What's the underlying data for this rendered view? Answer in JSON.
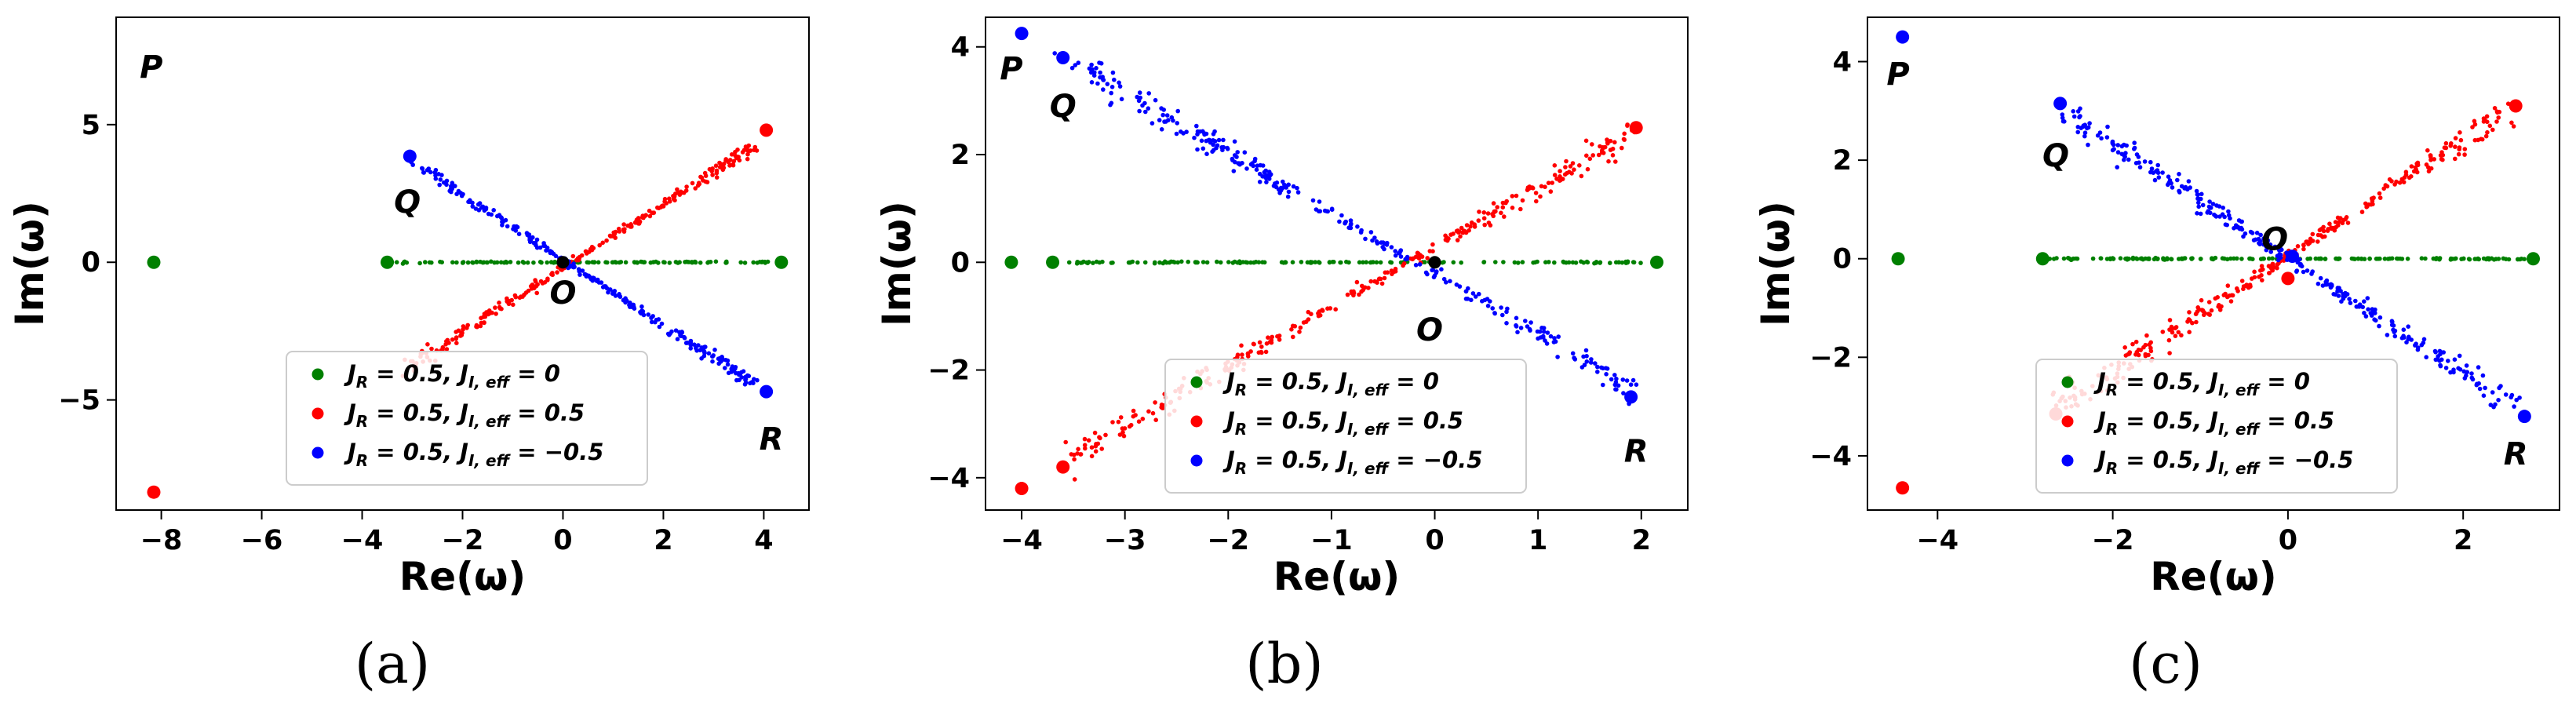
{
  "chart_data": [
    {
      "type": "scatter",
      "panel_label": "(a)",
      "xlabel": "Re(ω)",
      "ylabel": "Im(ω)",
      "xlim": [
        -8.9,
        4.9
      ],
      "ylim": [
        -9.0,
        8.9
      ],
      "xticks": [
        -8,
        -6,
        -4,
        -2,
        0,
        2,
        4
      ],
      "xtick_labels": [
        "−8",
        "−6",
        "−4",
        "−2",
        "0",
        "2",
        "4"
      ],
      "yticks": [
        -5,
        0,
        5
      ],
      "ytick_labels": [
        "−5",
        "0",
        "5"
      ],
      "legend_position": "lower-right",
      "series": [
        {
          "name": "J_R = 0.5, J_I,eff = 0",
          "legend_parts": [
            "J",
            "R",
            " = 0.5, J",
            "I, eff",
            " = 0"
          ],
          "color": "#008000",
          "big_points": [
            [
              -8.15,
              0
            ],
            [
              -3.5,
              0
            ],
            [
              4.35,
              0
            ]
          ],
          "cloud": [
            {
              "kind": "line",
              "x0": -3.5,
              "y0": 0,
              "x1": 4.1,
              "y1": 0,
              "n": 120,
              "spread": 0.02
            }
          ]
        },
        {
          "name": "J_R = 0.5, J_I,eff = 0.5",
          "legend_parts": [
            "J",
            "R",
            " = 0.5, J",
            "I, eff",
            " = 0.5"
          ],
          "color": "#ff0000",
          "big_points": [
            [
              -8.15,
              -8.35
            ],
            [
              4.05,
              4.8
            ]
          ],
          "cloud": [
            {
              "kind": "line",
              "x0": -3.1,
              "y0": -3.8,
              "x1": 3.9,
              "y1": 4.3,
              "n": 260,
              "spread": 0.12
            }
          ]
        },
        {
          "name": "J_R = 0.5, J_I,eff = −0.5",
          "legend_parts": [
            "J",
            "R",
            " = 0.5, J",
            "I, eff",
            " = −0.5"
          ],
          "color": "#0000ff",
          "big_points": [
            [
              -3.05,
              3.85
            ],
            [
              4.05,
              -4.7
            ]
          ],
          "cloud": [
            {
              "kind": "line",
              "x0": -2.9,
              "y0": 3.5,
              "x1": 3.8,
              "y1": -4.4,
              "n": 260,
              "spread": 0.12
            }
          ]
        }
      ],
      "origin_point": [
        0,
        0
      ],
      "annotations": [
        {
          "text": "P",
          "x": -8.2,
          "y": 7.1
        },
        {
          "text": "Q",
          "x": -3.1,
          "y": 2.2
        },
        {
          "text": "O",
          "x": 0.0,
          "y": -1.1
        },
        {
          "text": "R",
          "x": 4.15,
          "y": -6.4
        }
      ]
    },
    {
      "type": "scatter",
      "panel_label": "(b)",
      "xlabel": "Re(ω)",
      "ylabel": "Im(ω)",
      "xlim": [
        -4.35,
        2.45
      ],
      "ylim": [
        -4.6,
        4.55
      ],
      "xticks": [
        -4,
        -3,
        -2,
        -1,
        0,
        1,
        2
      ],
      "xtick_labels": [
        "−4",
        "−3",
        "−2",
        "−1",
        "0",
        "1",
        "2"
      ],
      "yticks": [
        -4,
        -2,
        0,
        2,
        4
      ],
      "ytick_labels": [
        "−4",
        "−2",
        "0",
        "2",
        "4"
      ],
      "legend_position": "lower-center",
      "series": [
        {
          "name": "J_R = 0.5, J_I,eff = 0",
          "legend_parts": [
            "J",
            "R",
            " = 0.5, J",
            "I, eff",
            " = 0"
          ],
          "color": "#008000",
          "big_points": [
            [
              -4.1,
              0
            ],
            [
              -3.7,
              0
            ],
            [
              2.15,
              0
            ]
          ],
          "cloud": [
            {
              "kind": "line",
              "x0": -3.7,
              "y0": 0,
              "x1": 2.0,
              "y1": 0,
              "n": 150,
              "spread": 0.01
            }
          ]
        },
        {
          "name": "J_R = 0.5, J_I,eff = 0.5",
          "legend_parts": [
            "J",
            "R",
            " = 0.5, J",
            "I, eff",
            " = 0.5"
          ],
          "color": "#ff0000",
          "big_points": [
            [
              -4.0,
              -4.2
            ],
            [
              -3.6,
              -3.8
            ],
            [
              1.95,
              2.5
            ]
          ],
          "cloud": [
            {
              "kind": "line",
              "x0": -3.5,
              "y0": -3.6,
              "x1": 1.95,
              "y1": 2.45,
              "n": 300,
              "spread": 0.12
            }
          ]
        },
        {
          "name": "J_R = 0.5, J_I,eff = −0.5",
          "legend_parts": [
            "J",
            "R",
            " = 0.5, J",
            "I, eff",
            " = −0.5"
          ],
          "color": "#0000ff",
          "big_points": [
            [
              -4.0,
              4.25
            ],
            [
              -3.6,
              3.8
            ],
            [
              1.9,
              -2.5
            ]
          ],
          "cloud": [
            {
              "kind": "line",
              "x0": -3.5,
              "y0": 3.7,
              "x1": 1.95,
              "y1": -2.4,
              "n": 300,
              "spread": 0.12
            }
          ]
        }
      ],
      "origin_point": [
        0,
        0
      ],
      "annotations": [
        {
          "text": "P",
          "x": -4.1,
          "y": 3.6
        },
        {
          "text": "Q",
          "x": -3.6,
          "y": 2.9
        },
        {
          "text": "O",
          "x": -0.05,
          "y": -1.25
        },
        {
          "text": "R",
          "x": 1.95,
          "y": -3.5
        }
      ]
    },
    {
      "type": "scatter",
      "panel_label": "(c)",
      "xlabel": "Re(ω)",
      "ylabel": "Im(ω)",
      "xlim": [
        -4.8,
        3.1
      ],
      "ylim": [
        -5.1,
        4.9
      ],
      "xticks": [
        -4,
        -2,
        0,
        2
      ],
      "xtick_labels": [
        "−4",
        "−2",
        "0",
        "2"
      ],
      "yticks": [
        -4,
        -2,
        0,
        2,
        4
      ],
      "ytick_labels": [
        "−4",
        "−2",
        "0",
        "2",
        "4"
      ],
      "legend_position": "lower-center",
      "series": [
        {
          "name": "J_R = 0.5, J_I,eff = 0",
          "legend_parts": [
            "J",
            "R",
            " = 0.5, J",
            "I, eff",
            " = 0"
          ],
          "color": "#008000",
          "big_points": [
            [
              -4.45,
              0
            ],
            [
              -2.8,
              0
            ],
            [
              2.8,
              0
            ]
          ],
          "cloud": [
            {
              "kind": "line",
              "x0": -2.8,
              "y0": 0,
              "x1": 2.7,
              "y1": 0,
              "n": 170,
              "spread": 0.01
            }
          ]
        },
        {
          "name": "J_R = 0.5, J_I,eff = 0.5",
          "legend_parts": [
            "J",
            "R",
            " = 0.5, J",
            "I, eff",
            " = 0.5"
          ],
          "color": "#ff0000",
          "big_points": [
            [
              -4.4,
              -4.65
            ],
            [
              -2.65,
              -3.15
            ],
            [
              2.6,
              3.1
            ],
            [
              0.0,
              -0.4
            ]
          ],
          "cloud": [
            {
              "kind": "line",
              "x0": -2.6,
              "y0": -3.0,
              "x1": 2.5,
              "y1": 3.0,
              "n": 300,
              "spread": 0.14
            }
          ]
        },
        {
          "name": "J_R = 0.5, J_I,eff = −0.5",
          "legend_parts": [
            "J",
            "R",
            " = 0.5, J",
            "I, eff",
            " = −0.5"
          ],
          "color": "#0000ff",
          "big_points": [
            [
              -4.4,
              4.5
            ],
            [
              -2.6,
              3.15
            ],
            [
              2.7,
              -3.2
            ],
            [
              0.05,
              0.05
            ]
          ],
          "cloud": [
            {
              "kind": "line",
              "x0": -2.5,
              "y0": 2.9,
              "x1": 2.6,
              "y1": -3.0,
              "n": 300,
              "spread": 0.14
            }
          ]
        }
      ],
      "origin_point": null,
      "annotations": [
        {
          "text": "P",
          "x": -4.45,
          "y": 3.75
        },
        {
          "text": "Q",
          "x": -2.65,
          "y": 2.1
        },
        {
          "text": "O",
          "x": -0.15,
          "y": 0.4
        },
        {
          "text": "R",
          "x": 2.6,
          "y": -3.95
        }
      ]
    }
  ]
}
